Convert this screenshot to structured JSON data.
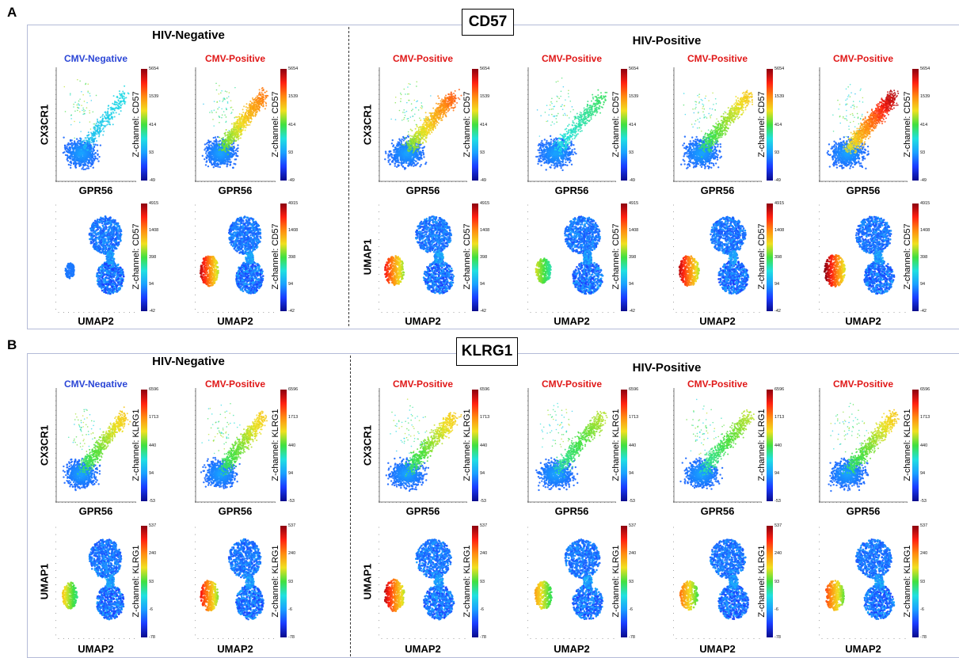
{
  "panels": [
    {
      "letter": "A",
      "marker": "CD57",
      "neg_group": "HIV-Negative",
      "pos_group": "HIV-Positive",
      "neg_status": [
        "CMV-Negative",
        "CMV-Positive"
      ],
      "pos_status": [
        "CMV-Positive",
        "CMV-Positive",
        "CMV-Positive",
        "CMV-Positive"
      ],
      "z_title": "Z-channel: CD57",
      "top_ticks": [
        "5654",
        "1539",
        "414",
        "93",
        "-49"
      ],
      "bottom_ticks": [
        "4915",
        "1408",
        "398",
        "94",
        "-42"
      ],
      "top_xlabel": "GPR56",
      "top_ylabel": "CX3CR1",
      "bottom_xlabel": "UMAP2",
      "bottom_ylabel": "UMAP1"
    },
    {
      "letter": "B",
      "marker": "KLRG1",
      "neg_group": "HIV-Negative",
      "pos_group": "HIV-Positive",
      "neg_status": [
        "CMV-Negative",
        "CMV-Positive"
      ],
      "pos_status": [
        "CMV-Positive",
        "CMV-Positive",
        "CMV-Positive",
        "CMV-Positive"
      ],
      "z_title": "Z-channel: KLRG1",
      "top_ticks": [
        "6596",
        "1713",
        "440",
        "94",
        "-53"
      ],
      "bottom_ticks": [
        "537",
        "240",
        "93",
        "-6",
        "-78"
      ],
      "top_xlabel": "GPR56",
      "top_ylabel": "CX3CR1",
      "bottom_xlabel": "UMAP2",
      "bottom_ylabel": "UMAP1"
    }
  ],
  "chart_data": [
    {
      "type": "scatter",
      "panel": "A",
      "z_channel": "CD57",
      "xlabel": "GPR56",
      "ylabel": "CX3CR1",
      "z_scale_ticks": [
        5654,
        1539,
        414,
        93,
        -49
      ],
      "samples": [
        "HIV-Negative CMV-Negative",
        "HIV-Negative CMV-Positive",
        "HIV-Positive CMV-Positive",
        "HIV-Positive CMV-Positive",
        "HIV-Positive CMV-Positive",
        "HIV-Positive CMV-Positive"
      ],
      "z_intensity": [
        0.15,
        0.7,
        0.75,
        0.3,
        0.55,
        0.95
      ]
    },
    {
      "type": "scatter",
      "panel": "A",
      "z_channel": "CD57",
      "xlabel": "UMAP2",
      "ylabel": "UMAP1",
      "z_scale_ticks": [
        4915,
        1408,
        398,
        94,
        -42
      ],
      "samples": [
        "HIV-Negative CMV-Negative",
        "HIV-Negative CMV-Positive",
        "HIV-Positive CMV-Positive",
        "HIV-Positive CMV-Positive",
        "HIV-Positive CMV-Positive",
        "HIV-Positive CMV-Positive"
      ],
      "z_intensity": [
        0.2,
        0.9,
        0.85,
        0.6,
        0.9,
        0.95
      ]
    },
    {
      "type": "scatter",
      "panel": "B",
      "z_channel": "KLRG1",
      "xlabel": "GPR56",
      "ylabel": "CX3CR1",
      "z_scale_ticks": [
        6596,
        1713,
        440,
        94,
        -53
      ],
      "samples": [
        "HIV-Negative CMV-Negative",
        "HIV-Negative CMV-Positive",
        "HIV-Positive CMV-Positive",
        "HIV-Positive CMV-Positive",
        "HIV-Positive CMV-Positive",
        "HIV-Positive CMV-Positive"
      ],
      "z_intensity": [
        0.55,
        0.55,
        0.55,
        0.45,
        0.45,
        0.55
      ]
    },
    {
      "type": "scatter",
      "panel": "B",
      "z_channel": "KLRG1",
      "xlabel": "UMAP2",
      "ylabel": "UMAP1",
      "z_scale_ticks": [
        537,
        240,
        93,
        -6,
        -78
      ],
      "samples": [
        "HIV-Negative CMV-Negative",
        "HIV-Negative CMV-Positive",
        "HIV-Positive CMV-Positive",
        "HIV-Positive CMV-Positive",
        "HIV-Positive CMV-Positive",
        "HIV-Positive CMV-Positive"
      ],
      "z_intensity": [
        0.65,
        0.85,
        0.9,
        0.7,
        0.75,
        0.8
      ]
    }
  ]
}
